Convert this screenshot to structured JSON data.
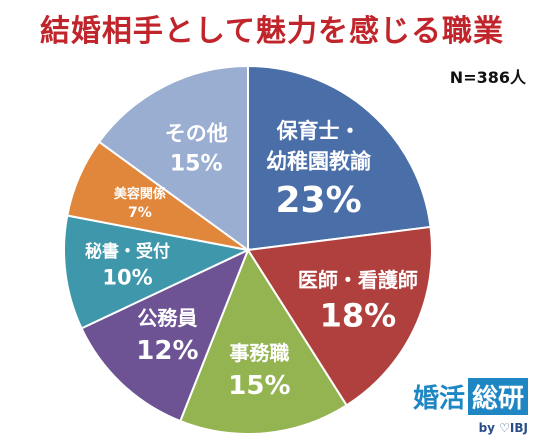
{
  "title": "結婚相手として魅力を感じる職業",
  "sample_size": "N=386人",
  "logo": {
    "part1": "婚活",
    "part2": "総研",
    "by": "by ♡IBJ"
  },
  "chart_data": {
    "type": "pie",
    "title": "結婚相手として魅力を感じる職業",
    "slices": [
      {
        "label": [
          "保育士・",
          "幼稚園教諭"
        ],
        "value": 23,
        "value_label": "23%",
        "color": "#4a6ea8"
      },
      {
        "label": [
          "医師・看護師"
        ],
        "value": 18,
        "value_label": "18%",
        "color": "#b0403e"
      },
      {
        "label": [
          "事務職"
        ],
        "value": 15,
        "value_label": "15%",
        "color": "#93b451"
      },
      {
        "label": [
          "公務員"
        ],
        "value": 12,
        "value_label": "12%",
        "color": "#6d5394"
      },
      {
        "label": [
          "秘書・受付"
        ],
        "value": 10,
        "value_label": "10%",
        "color": "#3f97ac"
      },
      {
        "label": [
          "美容関係"
        ],
        "value": 7,
        "value_label": "7%",
        "color": "#e1873c"
      },
      {
        "label": [
          "その他"
        ],
        "value": 15,
        "value_label": "15%",
        "color": "#9aaed2"
      }
    ],
    "start_angle": "12 o'clock",
    "direction": "clockwise",
    "legend": "none"
  }
}
